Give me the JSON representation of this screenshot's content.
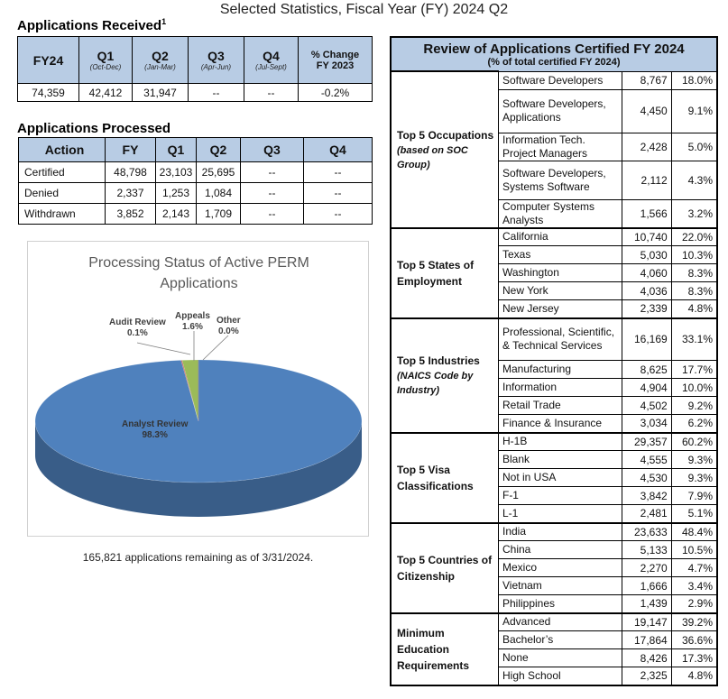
{
  "page_title": "Selected Statistics, Fiscal Year (FY) 2024 Q2",
  "received": {
    "title": "Applications Received",
    "footnote": "1",
    "headers": [
      {
        "big": "FY24",
        "sm": ""
      },
      {
        "big": "Q1",
        "sm": "(Oct-Dec)"
      },
      {
        "big": "Q2",
        "sm": "(Jan-Mar)"
      },
      {
        "big": "Q3",
        "sm": "(Apr-Jun)"
      },
      {
        "big": "Q4",
        "sm": "(Jul-Sept)"
      },
      {
        "big": "",
        "lab1": "% Change",
        "lab2": "FY 2023"
      }
    ],
    "values": [
      "74,359",
      "42,412",
      "31,947",
      "--",
      "--",
      "-0.2%"
    ]
  },
  "processed": {
    "title": "Applications Processed",
    "headers": [
      "Action",
      "FY",
      "Q1",
      "Q2",
      "Q3",
      "Q4"
    ],
    "rows": [
      [
        "Certified",
        "48,798",
        "23,103",
        "25,695",
        "--",
        "--"
      ],
      [
        "Denied",
        "2,337",
        "1,253",
        "1,084",
        "--",
        "--"
      ],
      [
        "Withdrawn",
        "3,852",
        "2,143",
        "1,709",
        "--",
        "--"
      ]
    ]
  },
  "chart_data": {
    "type": "pie",
    "title_line1": "Processing Status of Active PERM",
    "title_line2": "Applications",
    "slices": [
      {
        "label": "Analyst Review",
        "value": 98.3,
        "value_text": "98.3%",
        "color": "#4f81bd"
      },
      {
        "label": "Audit Review",
        "value": 0.1,
        "value_text": "0.1%",
        "color": "#c0504d"
      },
      {
        "label": "Appeals",
        "value": 1.6,
        "value_text": "1.6%",
        "color": "#9bbb59"
      },
      {
        "label": "Other",
        "value": 0.0,
        "value_text": "0.0%",
        "color": "#8064a2"
      }
    ]
  },
  "remaining_text": "165,821 applications remaining as of 3/31/2024.",
  "review": {
    "title": "Review of Applications Certified FY 2024",
    "subtitle": "(% of total certified FY 2024)",
    "groups": [
      {
        "label": "Top 5 Occupations",
        "sub": "(based on SOC Group)",
        "rows": [
          {
            "name": "Software Developers",
            "num": "8,767",
            "pct": "18.0%"
          },
          {
            "name": "Software Developers, Applications",
            "num": "4,450",
            "pct": "9.1%"
          },
          {
            "name": "Information Tech. Project Managers",
            "num": "2,428",
            "pct": "5.0%"
          },
          {
            "name": "Software Developers, Systems Software",
            "num": "2,112",
            "pct": "4.3%"
          },
          {
            "name": "Computer Systems Analysts",
            "num": "1,566",
            "pct": "3.2%"
          }
        ]
      },
      {
        "label": "Top 5 States of Employment",
        "sub": "",
        "rows": [
          {
            "name": "California",
            "num": "10,740",
            "pct": "22.0%"
          },
          {
            "name": "Texas",
            "num": "5,030",
            "pct": "10.3%"
          },
          {
            "name": "Washington",
            "num": "4,060",
            "pct": "8.3%"
          },
          {
            "name": "New York",
            "num": "4,036",
            "pct": "8.3%"
          },
          {
            "name": "New Jersey",
            "num": "2,339",
            "pct": "4.8%"
          }
        ]
      },
      {
        "label": "Top 5 Industries",
        "sub": "(NAICS Code by Industry)",
        "rows": [
          {
            "name": "Professional, Scientific, & Technical Services",
            "num": "16,169",
            "pct": "33.1%"
          },
          {
            "name": "Manufacturing",
            "num": "8,625",
            "pct": "17.7%"
          },
          {
            "name": "Information",
            "num": "4,904",
            "pct": "10.0%"
          },
          {
            "name": "Retail Trade",
            "num": "4,502",
            "pct": "9.2%"
          },
          {
            "name": "Finance & Insurance",
            "num": "3,034",
            "pct": "6.2%"
          }
        ]
      },
      {
        "label": "Top 5 Visa Classifications",
        "sub": "",
        "rows": [
          {
            "name": "H-1B",
            "num": "29,357",
            "pct": "60.2%"
          },
          {
            "name": "Blank",
            "num": "4,555",
            "pct": "9.3%"
          },
          {
            "name": "Not in USA",
            "num": "4,530",
            "pct": "9.3%"
          },
          {
            "name": "F-1",
            "num": "3,842",
            "pct": "7.9%"
          },
          {
            "name": "L-1",
            "num": "2,481",
            "pct": "5.1%"
          }
        ]
      },
      {
        "label": "Top 5 Countries of Citizenship",
        "sub": "",
        "rows": [
          {
            "name": "India",
            "num": "23,633",
            "pct": "48.4%"
          },
          {
            "name": "China",
            "num": "5,133",
            "pct": "10.5%"
          },
          {
            "name": "Mexico",
            "num": "2,270",
            "pct": "4.7%"
          },
          {
            "name": "Vietnam",
            "num": "1,666",
            "pct": "3.4%"
          },
          {
            "name": "Philippines",
            "num": "1,439",
            "pct": "2.9%"
          }
        ]
      },
      {
        "label": "Minimum Education Requirements",
        "sub": "",
        "rows": [
          {
            "name": "Advanced",
            "num": "19,147",
            "pct": "39.2%"
          },
          {
            "name": "Bachelor’s",
            "num": "17,864",
            "pct": "36.6%"
          },
          {
            "name": "None",
            "num": "8,426",
            "pct": "17.3%"
          },
          {
            "name": "High School",
            "num": "2,325",
            "pct": "4.8%"
          }
        ]
      }
    ]
  }
}
